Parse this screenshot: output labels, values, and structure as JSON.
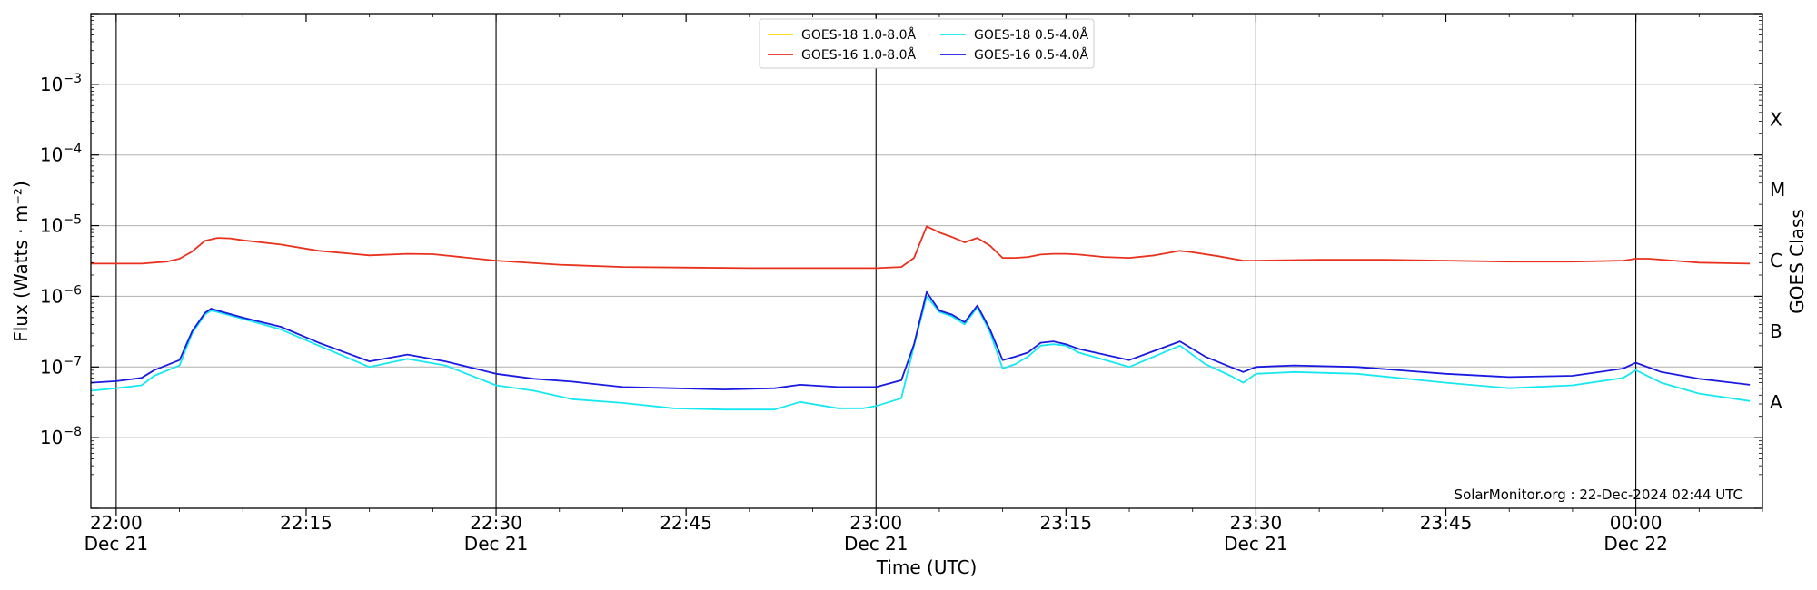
{
  "chart_data": {
    "type": "line",
    "xlabel": "Time (UTC)",
    "ylabel": "Flux (Watts · m⁻²)",
    "y2label": "GOES Class",
    "yscale": "log",
    "ylim": [
      1e-09,
      0.01
    ],
    "xlim": [
      "2024-12-21 21:58",
      "2024-12-22 00:10"
    ],
    "grid": "horizontal",
    "legend_placement": "top-center",
    "watermark": "SolarMonitor.org : 22-Dec-2024 02:44 UTC",
    "y_ticks": [
      {
        "value": 1e-08,
        "mant": "10",
        "exp": "−8"
      },
      {
        "value": 1e-07,
        "mant": "10",
        "exp": "−7"
      },
      {
        "value": 1e-06,
        "mant": "10",
        "exp": "−6"
      },
      {
        "value": 1e-05,
        "mant": "10",
        "exp": "−5"
      },
      {
        "value": 0.0001,
        "mant": "10",
        "exp": "−4"
      },
      {
        "value": 0.001,
        "mant": "10",
        "exp": "−3"
      }
    ],
    "class_labels": [
      {
        "label": "A",
        "value": 3.2e-08
      },
      {
        "label": "B",
        "value": 3.2e-07
      },
      {
        "label": "C",
        "value": 3.2e-06
      },
      {
        "label": "M",
        "value": 3.2e-05
      },
      {
        "label": "X",
        "value": 0.00032
      }
    ],
    "x_ticks": [
      {
        "time": "2024-12-21 22:00",
        "line1": "22:00",
        "line2": "Dec 21",
        "vline": true
      },
      {
        "time": "2024-12-21 22:15",
        "line1": "22:15",
        "line2": "",
        "vline": false
      },
      {
        "time": "2024-12-21 22:30",
        "line1": "22:30",
        "line2": "Dec 21",
        "vline": true
      },
      {
        "time": "2024-12-21 22:45",
        "line1": "22:45",
        "line2": "",
        "vline": false
      },
      {
        "time": "2024-12-21 23:00",
        "line1": "23:00",
        "line2": "Dec 21",
        "vline": true
      },
      {
        "time": "2024-12-21 23:15",
        "line1": "23:15",
        "line2": "",
        "vline": false
      },
      {
        "time": "2024-12-21 23:30",
        "line1": "23:30",
        "line2": "Dec 21",
        "vline": true
      },
      {
        "time": "2024-12-21 23:45",
        "line1": "23:45",
        "line2": "",
        "vline": false
      },
      {
        "time": "2024-12-22 00:00",
        "line1": "00:00",
        "line2": "Dec 22",
        "vline": true
      }
    ],
    "series": [
      {
        "name": "GOES-18 1.0-8.0Å",
        "color": "#ffd700",
        "x": [],
        "y": []
      },
      {
        "name": "GOES-16 1.0-8.0Å",
        "color": "#e8321e",
        "x": [
          "2024-12-21 21:58",
          "2024-12-21 22:02",
          "2024-12-21 22:04",
          "2024-12-21 22:05",
          "2024-12-21 22:06",
          "2024-12-21 22:07",
          "2024-12-21 22:08",
          "2024-12-21 22:09",
          "2024-12-21 22:10",
          "2024-12-21 22:13",
          "2024-12-21 22:16",
          "2024-12-21 22:20",
          "2024-12-21 22:23",
          "2024-12-21 22:25",
          "2024-12-21 22:30",
          "2024-12-21 22:35",
          "2024-12-21 22:40",
          "2024-12-21 22:50",
          "2024-12-21 23:00",
          "2024-12-21 23:02",
          "2024-12-21 23:03",
          "2024-12-21 23:04",
          "2024-12-21 23:05",
          "2024-12-21 23:06",
          "2024-12-21 23:07",
          "2024-12-21 23:08",
          "2024-12-21 23:09",
          "2024-12-21 23:10",
          "2024-12-21 23:11",
          "2024-12-21 23:12",
          "2024-12-21 23:13",
          "2024-12-21 23:14",
          "2024-12-21 23:15",
          "2024-12-21 23:16",
          "2024-12-21 23:18",
          "2024-12-21 23:20",
          "2024-12-21 23:22",
          "2024-12-21 23:24",
          "2024-12-21 23:25",
          "2024-12-21 23:27",
          "2024-12-21 23:29",
          "2024-12-21 23:30",
          "2024-12-21 23:35",
          "2024-12-21 23:40",
          "2024-12-21 23:45",
          "2024-12-21 23:50",
          "2024-12-21 23:55",
          "2024-12-21 23:59",
          "2024-12-22 00:00",
          "2024-12-22 00:01",
          "2024-12-22 00:03",
          "2024-12-22 00:05",
          "2024-12-22 00:09"
        ],
        "y": [
          2.9e-06,
          2.9e-06,
          3.1e-06,
          3.4e-06,
          4.3e-06,
          6.1e-06,
          6.7e-06,
          6.6e-06,
          6.2e-06,
          5.4e-06,
          4.4e-06,
          3.8e-06,
          4e-06,
          3.95e-06,
          3.2e-06,
          2.8e-06,
          2.6e-06,
          2.5e-06,
          2.5e-06,
          2.6e-06,
          3.5e-06,
          9.8e-06,
          8e-06,
          6.9e-06,
          5.8e-06,
          6.7e-06,
          5.2e-06,
          3.5e-06,
          3.5e-06,
          3.6e-06,
          3.9e-06,
          4e-06,
          4e-06,
          3.9e-06,
          3.6e-06,
          3.5e-06,
          3.8e-06,
          4.4e-06,
          4.2e-06,
          3.7e-06,
          3.2e-06,
          3.2e-06,
          3.3e-06,
          3.3e-06,
          3.2e-06,
          3.1e-06,
          3.1e-06,
          3.2e-06,
          3.4e-06,
          3.4e-06,
          3.2e-06,
          3e-06,
          2.9e-06
        ]
      },
      {
        "name": "GOES-18 0.5-4.0Å",
        "color": "#17e8f0",
        "x": [
          "2024-12-21 21:58",
          "2024-12-21 22:00",
          "2024-12-21 22:02",
          "2024-12-21 22:03",
          "2024-12-21 22:05",
          "2024-12-21 22:06",
          "2024-12-21 22:07",
          "2024-12-21 22:07:30",
          "2024-12-21 22:08",
          "2024-12-21 22:10",
          "2024-12-21 22:13",
          "2024-12-21 22:16",
          "2024-12-21 22:20",
          "2024-12-21 22:23",
          "2024-12-21 22:26",
          "2024-12-21 22:30",
          "2024-12-21 22:33",
          "2024-12-21 22:36",
          "2024-12-21 22:40",
          "2024-12-21 22:44",
          "2024-12-21 22:48",
          "2024-12-21 22:52",
          "2024-12-21 22:54",
          "2024-12-21 22:57",
          "2024-12-21 22:59",
          "2024-12-21 23:00",
          "2024-12-21 23:02",
          "2024-12-21 23:03",
          "2024-12-21 23:04",
          "2024-12-21 23:05",
          "2024-12-21 23:06",
          "2024-12-21 23:07",
          "2024-12-21 23:08",
          "2024-12-21 23:09",
          "2024-12-21 23:10",
          "2024-12-21 23:11",
          "2024-12-21 23:12",
          "2024-12-21 23:13",
          "2024-12-21 23:14",
          "2024-12-21 23:15",
          "2024-12-21 23:16",
          "2024-12-21 23:20",
          "2024-12-21 23:24",
          "2024-12-21 23:26",
          "2024-12-21 23:28",
          "2024-12-21 23:29",
          "2024-12-21 23:30",
          "2024-12-21 23:33",
          "2024-12-21 23:38",
          "2024-12-21 23:45",
          "2024-12-21 23:50",
          "2024-12-21 23:55",
          "2024-12-21 23:59",
          "2024-12-22 00:00",
          "2024-12-22 00:02",
          "2024-12-22 00:05",
          "2024-12-22 00:09"
        ],
        "y": [
          4.6e-08,
          5e-08,
          5.5e-08,
          7.5e-08,
          1.05e-07,
          3e-07,
          5.5e-07,
          6.3e-07,
          6e-07,
          4.8e-07,
          3.4e-07,
          2e-07,
          1e-07,
          1.3e-07,
          1.05e-07,
          5.5e-08,
          4.6e-08,
          3.5e-08,
          3.1e-08,
          2.6e-08,
          2.5e-08,
          2.5e-08,
          3.2e-08,
          2.6e-08,
          2.6e-08,
          2.8e-08,
          3.6e-08,
          2e-07,
          1e-06,
          6e-07,
          5.2e-07,
          4e-07,
          7e-07,
          3.1e-07,
          9.5e-08,
          1.1e-07,
          1.4e-07,
          2e-07,
          2.1e-07,
          2e-07,
          1.6e-07,
          1e-07,
          2e-07,
          1.1e-07,
          7.5e-08,
          6e-08,
          8e-08,
          8.5e-08,
          8e-08,
          6e-08,
          5e-08,
          5.5e-08,
          7e-08,
          9e-08,
          6e-08,
          4.2e-08,
          3.3e-08
        ]
      },
      {
        "name": "GOES-16 0.5-4.0Å",
        "color": "#1a1ae0",
        "x": [
          "2024-12-21 21:58",
          "2024-12-21 22:00",
          "2024-12-21 22:02",
          "2024-12-21 22:03",
          "2024-12-21 22:05",
          "2024-12-21 22:06",
          "2024-12-21 22:07",
          "2024-12-21 22:07:30",
          "2024-12-21 22:08",
          "2024-12-21 22:10",
          "2024-12-21 22:13",
          "2024-12-21 22:16",
          "2024-12-21 22:20",
          "2024-12-21 22:23",
          "2024-12-21 22:26",
          "2024-12-21 22:30",
          "2024-12-21 22:33",
          "2024-12-21 22:36",
          "2024-12-21 22:40",
          "2024-12-21 22:44",
          "2024-12-21 22:48",
          "2024-12-21 22:52",
          "2024-12-21 22:54",
          "2024-12-21 22:57",
          "2024-12-21 22:59",
          "2024-12-21 23:00",
          "2024-12-21 23:02",
          "2024-12-21 23:03",
          "2024-12-21 23:04",
          "2024-12-21 23:05",
          "2024-12-21 23:06",
          "2024-12-21 23:07",
          "2024-12-21 23:08",
          "2024-12-21 23:09",
          "2024-12-21 23:10",
          "2024-12-21 23:11",
          "2024-12-21 23:12",
          "2024-12-21 23:13",
          "2024-12-21 23:14",
          "2024-12-21 23:15",
          "2024-12-21 23:16",
          "2024-12-21 23:20",
          "2024-12-21 23:24",
          "2024-12-21 23:26",
          "2024-12-21 23:28",
          "2024-12-21 23:29",
          "2024-12-21 23:30",
          "2024-12-21 23:33",
          "2024-12-21 23:38",
          "2024-12-21 23:45",
          "2024-12-21 23:50",
          "2024-12-21 23:55",
          "2024-12-21 23:59",
          "2024-12-22 00:00",
          "2024-12-22 00:02",
          "2024-12-22 00:05",
          "2024-12-22 00:09"
        ],
        "y": [
          6e-08,
          6.3e-08,
          7e-08,
          9e-08,
          1.25e-07,
          3.2e-07,
          5.8e-07,
          6.7e-07,
          6.3e-07,
          5e-07,
          3.7e-07,
          2.2e-07,
          1.2e-07,
          1.5e-07,
          1.2e-07,
          8e-08,
          6.8e-08,
          6.2e-08,
          5.2e-08,
          5e-08,
          4.8e-08,
          5e-08,
          5.6e-08,
          5.2e-08,
          5.2e-08,
          5.2e-08,
          6.5e-08,
          2.1e-07,
          1.15e-06,
          6.3e-07,
          5.5e-07,
          4.3e-07,
          7.4e-07,
          3.4e-07,
          1.25e-07,
          1.4e-07,
          1.6e-07,
          2.2e-07,
          2.3e-07,
          2.1e-07,
          1.8e-07,
          1.25e-07,
          2.3e-07,
          1.4e-07,
          1e-07,
          8.5e-08,
          1e-07,
          1.05e-07,
          1e-07,
          8e-08,
          7.2e-08,
          7.5e-08,
          9.5e-08,
          1.15e-07,
          8.5e-08,
          6.8e-08,
          5.6e-08
        ]
      }
    ]
  }
}
